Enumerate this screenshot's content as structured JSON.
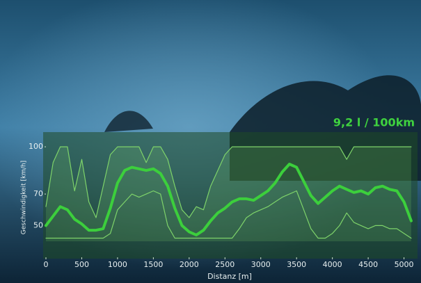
{
  "chart_data": {
    "type": "line",
    "title": "9,2 l / 100km",
    "x_label": "Distanz [m]",
    "y_label": "Geschwindigkeit [km/h]",
    "x": [
      0,
      100,
      200,
      300,
      400,
      500,
      600,
      700,
      800,
      900,
      1000,
      1100,
      1200,
      1300,
      1400,
      1500,
      1600,
      1700,
      1800,
      1900,
      2000,
      2100,
      2200,
      2300,
      2400,
      2500,
      2600,
      2700,
      2800,
      2900,
      3000,
      3100,
      3200,
      3300,
      3400,
      3500,
      3600,
      3700,
      3800,
      3900,
      4000,
      4100,
      4200,
      4300,
      4400,
      4500,
      4600,
      4700,
      4800,
      4900,
      5000,
      5100
    ],
    "series": [
      {
        "color": "#3ccf3c",
        "values": [
          50,
          56,
          62,
          60,
          54,
          51,
          47,
          47,
          48,
          61,
          77,
          85,
          87,
          86,
          85,
          86,
          83,
          75,
          61,
          50,
          46,
          44,
          47,
          53,
          58,
          61,
          65,
          67,
          67,
          66,
          69,
          72,
          77,
          84,
          89,
          87,
          78,
          69,
          64,
          68,
          72,
          75,
          73,
          71,
          72,
          70,
          74,
          75,
          73,
          72,
          65,
          53
        ]
      },
      {
        "color": "#7ed36a",
        "values": [
          62,
          90,
          100,
          100,
          72,
          92,
          65,
          55,
          75,
          95,
          100,
          100,
          100,
          100,
          90,
          100,
          100,
          92,
          75,
          60,
          55,
          62,
          60,
          75,
          85,
          95,
          100,
          100,
          100,
          100,
          100,
          100,
          100,
          100,
          100,
          100,
          100,
          100,
          100,
          100,
          100,
          100,
          92,
          100,
          100,
          100,
          100,
          100,
          100,
          100,
          100,
          100
        ]
      },
      {
        "color": "#7ed36a",
        "values": [
          42,
          42,
          42,
          42,
          42,
          42,
          42,
          42,
          42,
          45,
          60,
          65,
          70,
          68,
          70,
          72,
          70,
          50,
          42,
          42,
          42,
          42,
          42,
          42,
          42,
          42,
          42,
          48,
          55,
          58,
          60,
          62,
          65,
          68,
          70,
          72,
          60,
          48,
          42,
          42,
          45,
          50,
          58,
          52,
          50,
          48,
          50,
          50,
          48,
          48,
          45,
          42
        ]
      }
    ],
    "xlim": [
      0,
      5150
    ],
    "ylim": [
      40,
      108
    ],
    "xticks": [
      0,
      500,
      1000,
      1500,
      2000,
      2500,
      3000,
      3500,
      4000,
      4500,
      5000
    ],
    "yticks": [
      50,
      70,
      100
    ]
  }
}
